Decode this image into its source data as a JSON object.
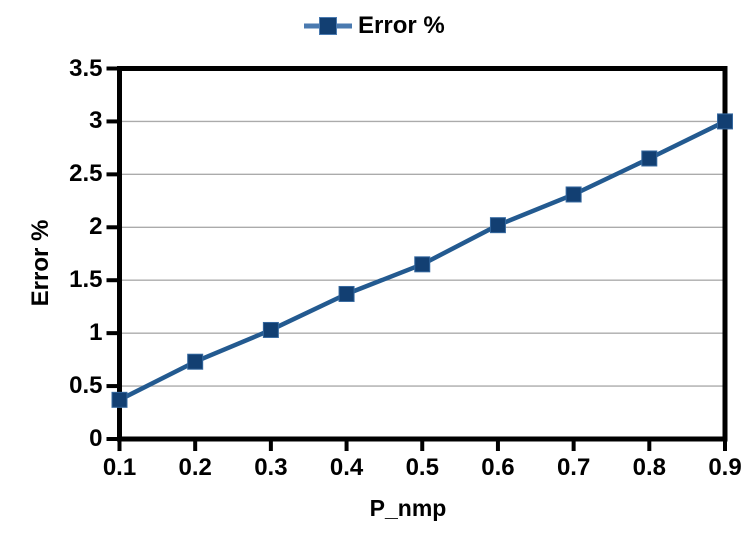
{
  "chart_data": {
    "type": "line",
    "title": "",
    "legend": {
      "label": "Error %",
      "position": "top-center"
    },
    "xlabel": "P_nmp",
    "ylabel": "Error %",
    "x": [
      0.1,
      0.2,
      0.3,
      0.4,
      0.5,
      0.6,
      0.7,
      0.8,
      0.9
    ],
    "series": [
      {
        "name": "Error %",
        "values": [
          0.37,
          0.73,
          1.03,
          1.37,
          1.65,
          2.02,
          2.31,
          2.65,
          3.0
        ]
      }
    ],
    "xlim": [
      0.1,
      0.9
    ],
    "ylim": [
      0,
      3.5
    ],
    "x_tick_labels": [
      "0.1",
      "0.2",
      "0.3",
      "0.4",
      "0.5",
      "0.6",
      "0.7",
      "0.8",
      "0.9"
    ],
    "y_tick_labels": [
      "0",
      "0.5",
      "1",
      "1.5",
      "2",
      "2.5",
      "3",
      "3.5"
    ],
    "y_tick_values": [
      0,
      0.5,
      1,
      1.5,
      2,
      2.5,
      3,
      3.5
    ],
    "grid": "horizontal",
    "marker": "square",
    "colors": {
      "series_line": "#235a90",
      "series_marker": "#123f72",
      "marker_edge": "#35689f",
      "legend_line": "#4a7ab0",
      "grid": "#ababab",
      "axis": "#000000",
      "text": "#000000",
      "background": "#ffffff"
    }
  }
}
